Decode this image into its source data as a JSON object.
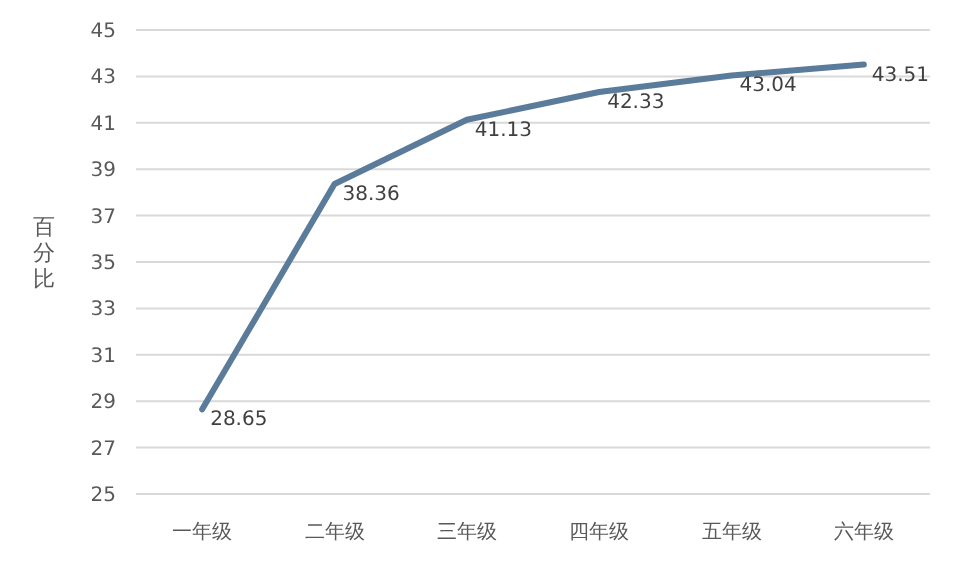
{
  "chart_data": {
    "type": "line",
    "ylabel": "百分比",
    "categories": [
      "一年级",
      "二年级",
      "三年级",
      "四年级",
      "五年级",
      "六年级"
    ],
    "series": [
      {
        "color": "#5b7b9a",
        "values": [
          28.65,
          38.36,
          41.13,
          42.33,
          43.04,
          43.51
        ]
      }
    ],
    "ylim": [
      25,
      45
    ],
    "yticks": [
      25,
      27,
      29,
      31,
      33,
      35,
      37,
      39,
      41,
      43,
      45
    ],
    "grid": "y",
    "data_labels": true,
    "marker": "none",
    "line_style": "solid"
  }
}
